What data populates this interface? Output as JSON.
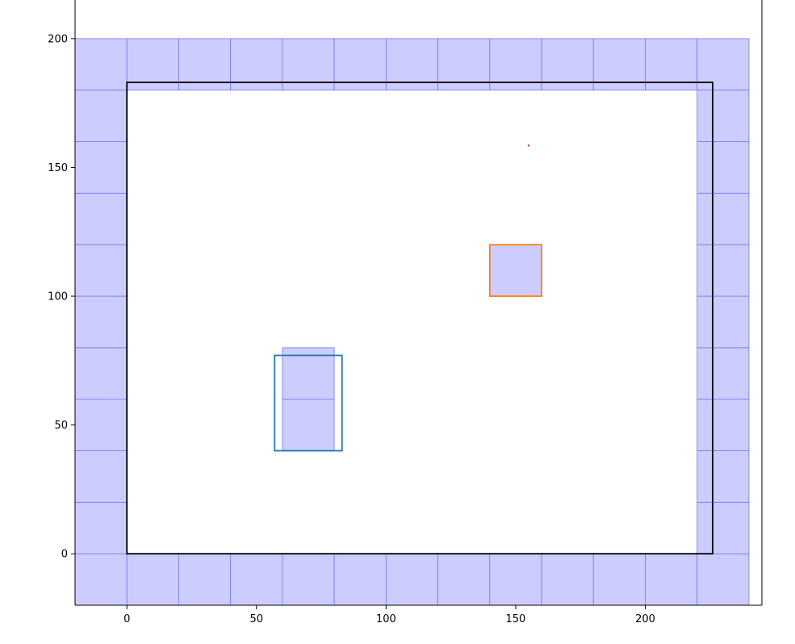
{
  "chart_data": {
    "type": "scatter",
    "title": "",
    "xlabel": "",
    "ylabel": "",
    "xlim": [
      -20,
      245
    ],
    "ylim": [
      -20,
      215
    ],
    "grid": false,
    "x_ticks": [
      0,
      50,
      100,
      150,
      200
    ],
    "y_ticks": [
      0,
      50,
      100,
      150,
      200
    ],
    "x_tick_labels": [
      "0",
      "50",
      "100",
      "150",
      "200"
    ],
    "y_tick_labels": [
      "0",
      "50",
      "100",
      "150",
      "200"
    ],
    "grid_cells": {
      "cell_size": 20,
      "fill_color": "#ccccff",
      "edge_color": "#7777ee",
      "cells": [
        [
          -20,
          -20
        ],
        [
          0,
          -20
        ],
        [
          20,
          -20
        ],
        [
          40,
          -20
        ],
        [
          60,
          -20
        ],
        [
          80,
          -20
        ],
        [
          100,
          -20
        ],
        [
          120,
          -20
        ],
        [
          140,
          -20
        ],
        [
          160,
          -20
        ],
        [
          180,
          -20
        ],
        [
          200,
          -20
        ],
        [
          220,
          -20
        ],
        [
          -20,
          180
        ],
        [
          0,
          180
        ],
        [
          20,
          180
        ],
        [
          40,
          180
        ],
        [
          60,
          180
        ],
        [
          80,
          180
        ],
        [
          100,
          180
        ],
        [
          120,
          180
        ],
        [
          140,
          180
        ],
        [
          160,
          180
        ],
        [
          180,
          180
        ],
        [
          200,
          180
        ],
        [
          220,
          180
        ],
        [
          -20,
          0
        ],
        [
          -20,
          20
        ],
        [
          -20,
          40
        ],
        [
          -20,
          60
        ],
        [
          -20,
          80
        ],
        [
          -20,
          100
        ],
        [
          -20,
          120
        ],
        [
          -20,
          140
        ],
        [
          -20,
          160
        ],
        [
          220,
          0
        ],
        [
          220,
          20
        ],
        [
          220,
          40
        ],
        [
          220,
          60
        ],
        [
          220,
          80
        ],
        [
          220,
          100
        ],
        [
          220,
          120
        ],
        [
          220,
          140
        ],
        [
          220,
          160
        ],
        [
          60,
          40
        ],
        [
          60,
          60
        ],
        [
          140,
          100
        ]
      ]
    },
    "rectangles": [
      {
        "x": 0,
        "y": 0,
        "width": 226,
        "height": 183,
        "color": "#000000"
      },
      {
        "x": 57,
        "y": 40,
        "width": 26,
        "height": 37,
        "color": "#1f77b4"
      },
      {
        "x": 140,
        "y": 100,
        "width": 20,
        "height": 20,
        "color": "#ff7f0e"
      }
    ],
    "points": [
      {
        "x": 155,
        "y": 158.5,
        "color": "#d62728"
      }
    ]
  }
}
